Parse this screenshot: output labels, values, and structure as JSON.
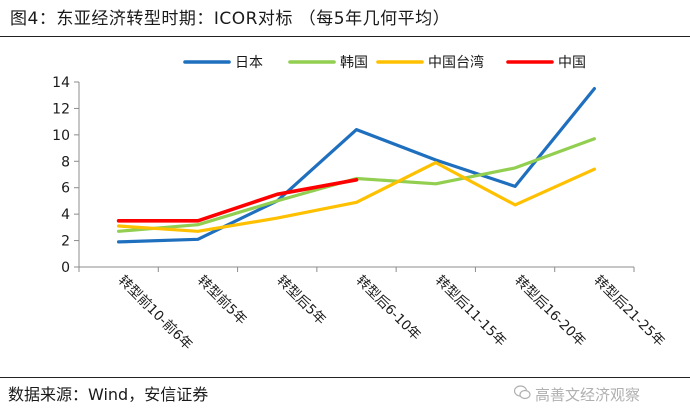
{
  "figure": {
    "title": "图4：东亚经济转型时期：ICOR对标 （每5年几何平均）",
    "source": "数据来源：Wind，安信证券",
    "watermark": "高善文经济观察",
    "watermark_icon": "wechat-icon"
  },
  "chart_data": {
    "type": "line",
    "title": "东亚经济转型时期：ICOR对标 （每5年几何平均）",
    "xlabel": "",
    "ylabel": "",
    "ylim": [
      0,
      14
    ],
    "yticks": [
      0,
      2,
      4,
      6,
      8,
      10,
      12,
      14
    ],
    "grid": false,
    "legend_position": "top",
    "categories": [
      "转型前10-前6年",
      "转型前5年",
      "转型后5年",
      "转型后6-10年",
      "转型后11-15年",
      "转型后16-20年",
      "转型后21-25年"
    ],
    "series": [
      {
        "name": "日本",
        "color": "#1f6fbf",
        "values": [
          1.9,
          2.1,
          5.0,
          10.4,
          8.1,
          6.1,
          13.5
        ]
      },
      {
        "name": "韩国",
        "color": "#92cf50",
        "values": [
          2.7,
          3.2,
          5.0,
          6.7,
          6.3,
          7.5,
          9.7
        ]
      },
      {
        "name": "中国台湾",
        "color": "#ffc000",
        "values": [
          3.1,
          2.7,
          3.7,
          4.9,
          7.9,
          4.7,
          7.4
        ]
      },
      {
        "name": "中国",
        "color": "#ff0000",
        "values": [
          3.5,
          3.5,
          5.5,
          6.6,
          null,
          null,
          null
        ]
      }
    ]
  }
}
